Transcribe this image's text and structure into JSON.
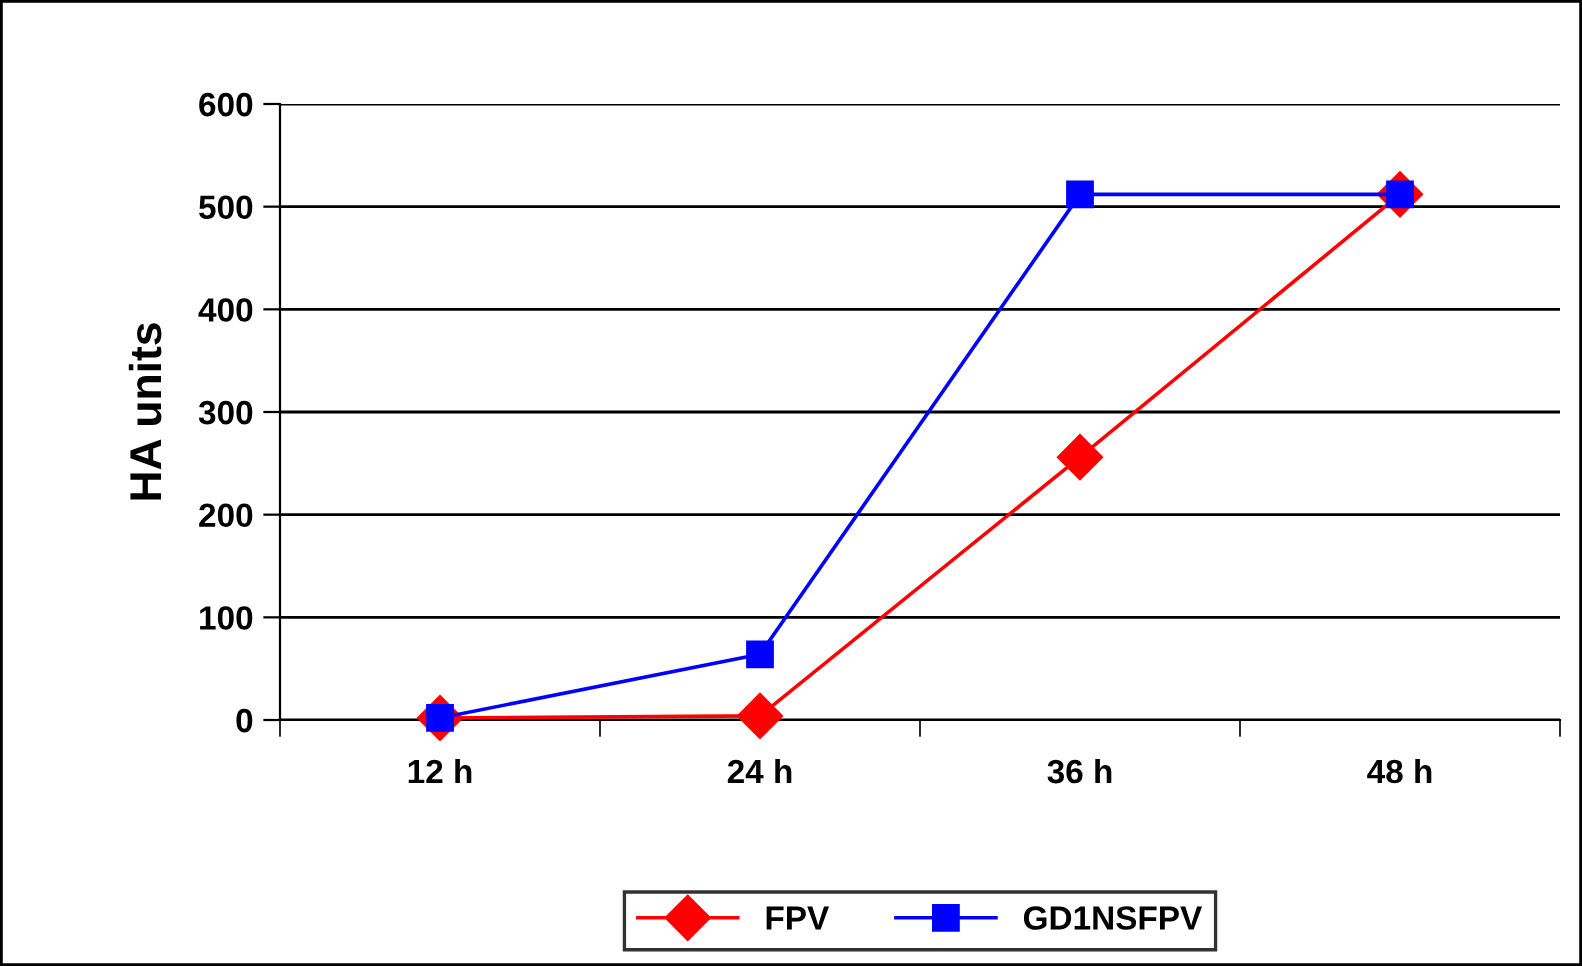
{
  "chart_data": {
    "type": "line",
    "ylabel": "HA units",
    "categories": [
      "12 h",
      "24 h",
      "36 h",
      "48 h"
    ],
    "series": [
      {
        "name": "FPV",
        "color": "#ff0000",
        "marker": "diamond",
        "values": [
          2,
          4,
          256,
          512
        ]
      },
      {
        "name": "GD1NSFPV",
        "color": "#0000ff",
        "marker": "square",
        "values": [
          2,
          64,
          512,
          512
        ]
      }
    ],
    "ylim": [
      0,
      600
    ],
    "yticks": [
      0,
      100,
      200,
      300,
      400,
      500,
      600
    ],
    "grid": "y",
    "legend": "bottom",
    "line_style": "solid"
  }
}
